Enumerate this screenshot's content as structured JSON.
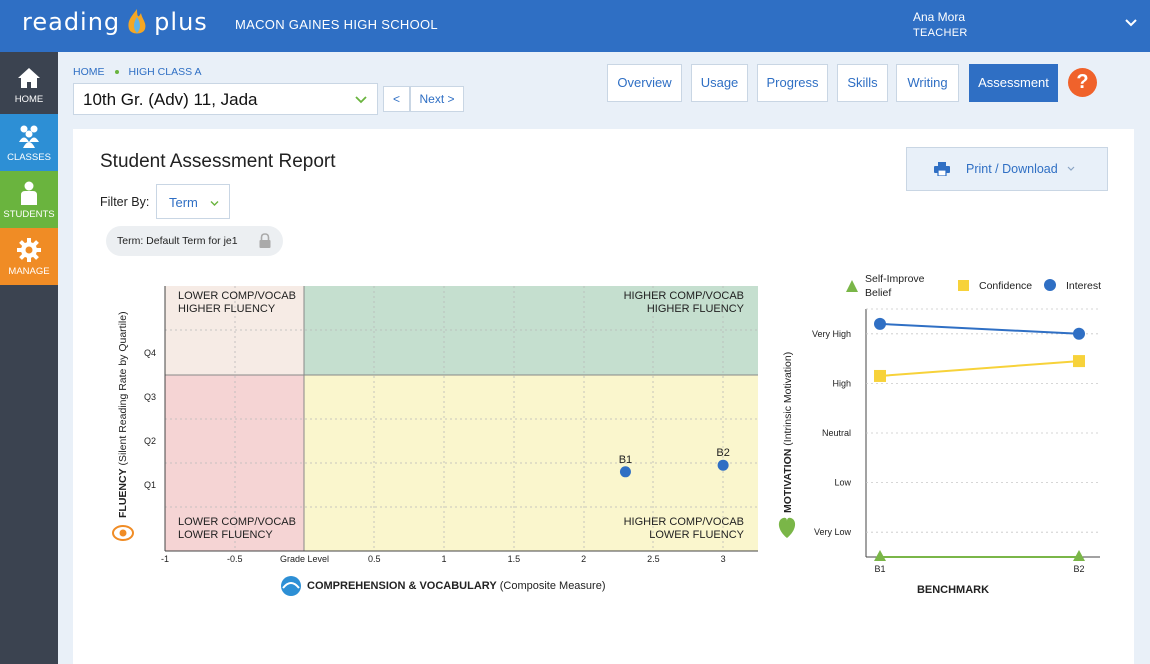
{
  "header": {
    "logo_left": "reading",
    "logo_right": "plus",
    "school": "MACON GAINES HIGH SCHOOL",
    "user_name": "Ana Mora",
    "user_role": "TEACHER"
  },
  "nav": {
    "home": "HOME",
    "classes": "CLASSES",
    "students": "STUDENTS",
    "manage": "MANAGE"
  },
  "breadcrumb": {
    "home": "HOME",
    "class": "HIGH CLASS A"
  },
  "student_select": {
    "value": "10th Gr. (Adv) 11, Jada"
  },
  "pager": {
    "prev": "<",
    "next": "Next >"
  },
  "tabs": [
    {
      "label": "Overview",
      "active": false
    },
    {
      "label": "Usage",
      "active": false
    },
    {
      "label": "Progress",
      "active": false
    },
    {
      "label": "Skills",
      "active": false
    },
    {
      "label": "Writing",
      "active": false
    },
    {
      "label": "Assessment",
      "active": true
    }
  ],
  "help": "?",
  "report": {
    "title": "Student Assessment Report",
    "print_label": "Print / Download",
    "filter_label": "Filter By:",
    "filter_value": "Term",
    "term_pill": "Term: Default Term for je1"
  },
  "colors": {
    "brand_blue": "#2f6fc4",
    "green": "#6ab43e",
    "orange": "#f08c25",
    "quad_low_high": "#f6ebe5",
    "quad_high_high": "#c5dfcf",
    "quad_low_low": "#f5d4d4",
    "quad_high_low": "#faf6cd",
    "interest": "#2f6fc4",
    "confidence": "#f7d23a",
    "self_improve": "#7ab648"
  },
  "chart_data": [
    {
      "type": "scatter",
      "quadrants": {
        "top_left": [
          "LOWER COMP/VOCAB",
          "HIGHER FLUENCY"
        ],
        "top_right": [
          "HIGHER COMP/VOCAB",
          "HIGHER FLUENCY"
        ],
        "bottom_left": [
          "LOWER COMP/VOCAB",
          "LOWER FLUENCY"
        ],
        "bottom_right": [
          "HIGHER COMP/VOCAB",
          "LOWER FLUENCY"
        ]
      },
      "xlabel_bold": "COMPREHENSION & VOCABULARY",
      "xlabel_rest": " (Composite Measure)",
      "ylabel_bold": "FLUENCY",
      "ylabel_rest": " (Silent Reading Rate by Quartile)",
      "x_ticks": [
        "-1",
        "-0.5",
        "Grade Level",
        "0.5",
        "1",
        "1.5",
        "2",
        "2.5",
        "3"
      ],
      "x_tick_values": [
        -1,
        -0.5,
        0,
        0.5,
        1,
        1.5,
        2,
        2.5,
        3
      ],
      "y_ticks": [
        "Q1",
        "Q2",
        "Q3",
        "Q4"
      ],
      "xlim": [
        -1,
        3.25
      ],
      "points": [
        {
          "label": "B1",
          "x": 2.3,
          "y": 1.2
        },
        {
          "label": "B2",
          "x": 3.0,
          "y": 1.3
        }
      ]
    },
    {
      "type": "line",
      "xlabel": "BENCHMARK",
      "ylabel_bold": "MOTIVATION",
      "ylabel_rest": " (Intrinsic Motivation)",
      "categories": [
        "B1",
        "B2"
      ],
      "y_ticks": [
        "Very Low",
        "Low",
        "Neutral",
        "High",
        "Very High"
      ],
      "ylim": [
        0,
        5
      ],
      "legend": {
        "self_improve": "Self-Improve",
        "self_improve_2": "Belief",
        "confidence": "Confidence",
        "interest": "Interest"
      },
      "series": [
        {
          "name": "Interest",
          "values": [
            4.7,
            4.5
          ],
          "marker": "circle",
          "color": "#2f6fc4"
        },
        {
          "name": "Confidence",
          "values": [
            3.65,
            3.95
          ],
          "marker": "square",
          "color": "#f7d23a"
        },
        {
          "name": "Self-Improve Belief",
          "values": [
            0,
            0
          ],
          "marker": "triangle",
          "color": "#7ab648"
        }
      ],
      "grid": true,
      "legend_position": "top"
    }
  ]
}
